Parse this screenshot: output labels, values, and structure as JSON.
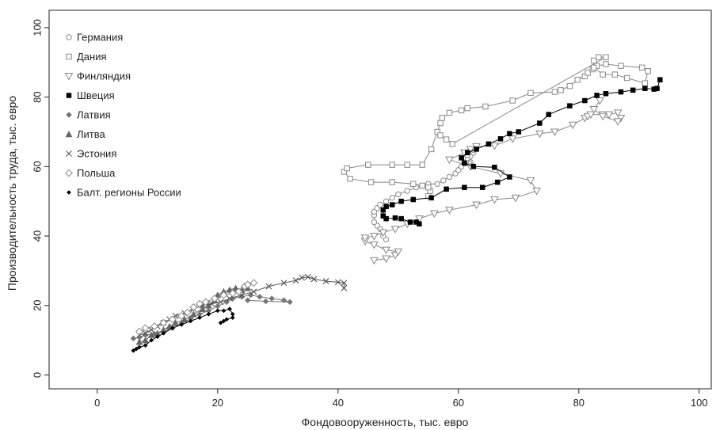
{
  "chart_data": {
    "type": "scatter",
    "title": "",
    "xlabel": "Фондовооруженность, тыс. евро",
    "ylabel": "Производительность труда, тыс. евро",
    "xlim": [
      -8,
      102
    ],
    "ylim": [
      -4,
      105
    ],
    "x_ticks": [
      0,
      20,
      40,
      60,
      80,
      100
    ],
    "y_ticks": [
      0,
      20,
      40,
      60,
      80,
      100
    ],
    "x_tick_labels": [
      "0",
      "20",
      "40",
      "60",
      "80",
      "100"
    ],
    "y_tick_labels": [
      "0",
      "20",
      "40",
      "60",
      "80",
      "100"
    ],
    "grid": false,
    "legend": "top-left",
    "series": [
      {
        "name": "Германия",
        "marker": "circle-open",
        "color": "#888888",
        "line_color": "#888888",
        "points": [
          [
            48,
            39
          ],
          [
            47.5,
            40
          ],
          [
            47,
            42
          ],
          [
            46.5,
            43
          ],
          [
            46,
            44
          ],
          [
            46,
            46
          ],
          [
            46,
            47
          ],
          [
            46.5,
            48
          ],
          [
            47,
            49
          ],
          [
            48,
            50
          ],
          [
            49,
            51
          ],
          [
            50,
            52
          ],
          [
            51.5,
            53
          ],
          [
            53,
            54
          ],
          [
            55,
            55
          ],
          [
            56.5,
            55
          ],
          [
            57.5,
            56
          ],
          [
            58.5,
            57
          ],
          [
            59.5,
            58
          ],
          [
            60,
            59
          ],
          [
            60.5,
            60
          ],
          [
            61,
            61
          ],
          [
            61.5,
            62
          ],
          [
            62,
            63
          ],
          [
            62.5,
            64
          ],
          [
            62.5,
            64.8
          ],
          [
            62,
            65
          ],
          [
            61.5,
            63
          ],
          [
            61.5,
            62
          ],
          [
            62,
            61.3
          ],
          [
            61.8,
            61
          ],
          [
            61.3,
            61
          ],
          [
            61,
            61.1
          ]
        ]
      },
      {
        "name": "Дания",
        "marker": "square-open",
        "color": "#888888",
        "line_color": "#888888",
        "points": [
          [
            55,
            51.5
          ],
          [
            55.3,
            53
          ],
          [
            55,
            54
          ],
          [
            54,
            54.5
          ],
          [
            52.5,
            55
          ],
          [
            49,
            55.5
          ],
          [
            45.5,
            55.5
          ],
          [
            42,
            56.5
          ],
          [
            41,
            58.5
          ],
          [
            41.5,
            59.5
          ],
          [
            45,
            60.5
          ],
          [
            49,
            60.5
          ],
          [
            51.5,
            60.5
          ],
          [
            54,
            60.5
          ],
          [
            55.5,
            65
          ],
          [
            56.5,
            70
          ],
          [
            57,
            72.5
          ],
          [
            57.3,
            74
          ],
          [
            58.5,
            75.5
          ],
          [
            60.5,
            76.2
          ],
          [
            61.5,
            76.8
          ],
          [
            64.5,
            77.3
          ],
          [
            69,
            79
          ],
          [
            72,
            81.2
          ],
          [
            76,
            81.5
          ],
          [
            77,
            82
          ],
          [
            78.5,
            83.2
          ],
          [
            79.8,
            85
          ],
          [
            81,
            86
          ],
          [
            81.5,
            87
          ],
          [
            82.3,
            88
          ],
          [
            83,
            89
          ],
          [
            84.5,
            89.5
          ],
          [
            87,
            89
          ],
          [
            90.5,
            88.5
          ],
          [
            91.5,
            87.5
          ],
          [
            91,
            84
          ],
          [
            88,
            85.5
          ],
          [
            86,
            86.5
          ],
          [
            84,
            86.5
          ],
          [
            82.5,
            88.5
          ],
          [
            82.5,
            90.5
          ],
          [
            83.3,
            91.5
          ],
          [
            84.5,
            91.5
          ],
          [
            59,
            66.5
          ],
          [
            58,
            67.8
          ],
          [
            57,
            69
          ]
        ]
      },
      {
        "name": "Финляндия",
        "marker": "triangle-down-open",
        "color": "#888888",
        "line_color": "#888888",
        "points": [
          [
            46,
            33
          ],
          [
            48,
            33.5
          ],
          [
            49.5,
            34.5
          ],
          [
            50,
            35.5
          ],
          [
            48,
            36
          ],
          [
            46,
            37.5
          ],
          [
            44.5,
            38.5
          ],
          [
            44.5,
            39.5
          ],
          [
            46,
            40
          ],
          [
            47.5,
            41
          ],
          [
            49.5,
            42
          ],
          [
            51.5,
            43.5
          ],
          [
            53.5,
            45
          ],
          [
            56,
            46.5
          ],
          [
            58.5,
            47.5
          ],
          [
            63,
            49
          ],
          [
            66,
            50.5
          ],
          [
            69.5,
            51
          ],
          [
            73,
            53
          ],
          [
            72,
            56
          ],
          [
            67,
            58
          ],
          [
            62,
            60
          ],
          [
            58.5,
            62
          ],
          [
            61,
            64
          ],
          [
            62,
            65
          ],
          [
            63,
            65.8
          ],
          [
            66,
            66
          ],
          [
            69,
            68
          ],
          [
            73.5,
            69.5
          ],
          [
            76,
            70
          ],
          [
            79,
            72
          ],
          [
            81,
            74
          ],
          [
            81.5,
            74.5
          ],
          [
            82,
            75
          ],
          [
            84,
            75
          ],
          [
            85,
            75
          ],
          [
            86.5,
            75.5
          ],
          [
            87,
            74
          ],
          [
            86.5,
            73
          ],
          [
            84,
            74.5
          ],
          [
            82.5,
            76.5
          ],
          [
            83.5,
            79
          ]
        ]
      },
      {
        "name": "Швеция",
        "marker": "square-filled",
        "color": "#000000",
        "line_color": "#000000",
        "points": [
          [
            53.5,
            43.5
          ],
          [
            53,
            44
          ],
          [
            52,
            44
          ],
          [
            50.5,
            45
          ],
          [
            49.5,
            45.2
          ],
          [
            48,
            45
          ],
          [
            47.5,
            45.8
          ],
          [
            47.5,
            47.5
          ],
          [
            48,
            48.5
          ],
          [
            49,
            49
          ],
          [
            50.5,
            50
          ],
          [
            52.5,
            50.5
          ],
          [
            55.5,
            51
          ],
          [
            58,
            53.5
          ],
          [
            61,
            54
          ],
          [
            64,
            54
          ],
          [
            66.5,
            55.5
          ],
          [
            68.5,
            57
          ],
          [
            66,
            59.8
          ],
          [
            62.5,
            60
          ],
          [
            61,
            61
          ],
          [
            60.5,
            62.5
          ],
          [
            61.5,
            64
          ],
          [
            63,
            65
          ],
          [
            65,
            66.5
          ],
          [
            67,
            68
          ],
          [
            68.5,
            69.5
          ],
          [
            70,
            70
          ],
          [
            73.5,
            72.5
          ],
          [
            75,
            75
          ],
          [
            78.5,
            77.5
          ],
          [
            81,
            79
          ],
          [
            83,
            80.5
          ],
          [
            84.5,
            81
          ],
          [
            87,
            81.5
          ],
          [
            89,
            82
          ],
          [
            91,
            82.5
          ],
          [
            92.5,
            82.3
          ],
          [
            93,
            82.5
          ],
          [
            93.5,
            85
          ]
        ]
      },
      {
        "name": "Латвия",
        "marker": "diamond-filled",
        "color": "#777777",
        "line_color": "#777777",
        "points": [
          [
            6,
            10.5
          ],
          [
            7,
            10.8
          ],
          [
            8,
            11.5
          ],
          [
            9.5,
            11.8
          ],
          [
            11,
            12.5
          ],
          [
            12.5,
            13.5
          ],
          [
            14,
            14.8
          ],
          [
            15.5,
            16.2
          ],
          [
            17,
            17.5
          ],
          [
            18.5,
            18.5
          ],
          [
            20,
            19.8
          ],
          [
            21.5,
            21
          ],
          [
            22.5,
            22
          ],
          [
            24,
            22.5
          ],
          [
            25.5,
            23
          ],
          [
            27,
            22.5
          ],
          [
            29,
            22
          ],
          [
            31,
            21.5
          ],
          [
            32,
            21
          ],
          [
            28,
            21.2
          ],
          [
            25,
            21.5
          ]
        ]
      },
      {
        "name": "Литва",
        "marker": "triangle-up-filled",
        "color": "#666666",
        "line_color": "#666666",
        "points": [
          [
            7,
            9.5
          ],
          [
            8,
            10
          ],
          [
            9,
            11.5
          ],
          [
            10,
            12
          ],
          [
            11,
            13
          ],
          [
            12,
            14
          ],
          [
            13,
            15
          ],
          [
            14.5,
            16
          ],
          [
            16,
            17.5
          ],
          [
            17.5,
            19
          ],
          [
            18.5,
            20
          ],
          [
            19.5,
            21.5
          ],
          [
            20,
            23
          ],
          [
            21,
            24
          ],
          [
            22,
            24.5
          ],
          [
            23,
            25
          ],
          [
            24,
            24.5
          ],
          [
            25,
            25
          ]
        ]
      },
      {
        "name": "Эстония",
        "marker": "cross",
        "color": "#555555",
        "line_color": "#555555",
        "points": [
          [
            7,
            11.5
          ],
          [
            8,
            12
          ],
          [
            9,
            13
          ],
          [
            10,
            14
          ],
          [
            11,
            15
          ],
          [
            12,
            16
          ],
          [
            13,
            17
          ],
          [
            14.5,
            17.8
          ],
          [
            16,
            19
          ],
          [
            17.5,
            20
          ],
          [
            19,
            20.5
          ],
          [
            20.5,
            21
          ],
          [
            22,
            22
          ],
          [
            24,
            23
          ],
          [
            26,
            24
          ],
          [
            28.5,
            25.5
          ],
          [
            31,
            26.5
          ],
          [
            33,
            27.2
          ],
          [
            34,
            28
          ],
          [
            35,
            28.2
          ],
          [
            36,
            27.6
          ],
          [
            38,
            27
          ],
          [
            40,
            26.7
          ],
          [
            41,
            26.5
          ],
          [
            41,
            25
          ]
        ]
      },
      {
        "name": "Польша",
        "marker": "diamond-open",
        "color": "#888888",
        "line_color": "#888888",
        "points": [
          [
            7,
            12.5
          ],
          [
            8,
            13.5
          ],
          [
            9.5,
            14
          ],
          [
            11,
            15
          ],
          [
            12.5,
            16
          ],
          [
            14,
            17
          ],
          [
            15,
            18
          ],
          [
            16,
            19.5
          ],
          [
            17,
            20.5
          ],
          [
            18,
            21
          ],
          [
            19.5,
            22
          ],
          [
            21,
            23
          ],
          [
            22.5,
            23.5
          ],
          [
            23.5,
            24
          ],
          [
            24.5,
            25.5
          ],
          [
            25,
            26
          ],
          [
            26,
            26.5
          ]
        ]
      },
      {
        "name": "Балт. регионы России",
        "marker": "diamond-small-filled",
        "color": "#000000",
        "line_color": "#000000",
        "points": [
          [
            6,
            7
          ],
          [
            6.5,
            7.5
          ],
          [
            7,
            8
          ],
          [
            8,
            8.5
          ],
          [
            9,
            10
          ],
          [
            10,
            11
          ],
          [
            11,
            12
          ],
          [
            12.5,
            13.5
          ],
          [
            14,
            14.5
          ],
          [
            15.5,
            15.5
          ],
          [
            17,
            16.5
          ],
          [
            18.5,
            17.5
          ],
          [
            20,
            18.5
          ],
          [
            21,
            18.5
          ],
          [
            22,
            19
          ],
          [
            22.5,
            17.5
          ],
          [
            22.5,
            16.5
          ],
          [
            21.5,
            16
          ],
          [
            21,
            15.5
          ],
          [
            20.5,
            15
          ]
        ]
      }
    ]
  }
}
